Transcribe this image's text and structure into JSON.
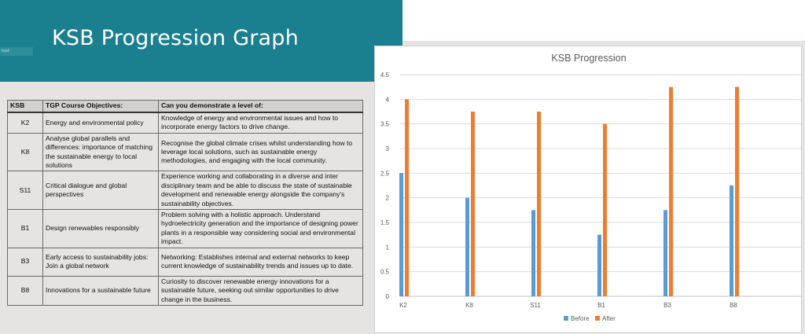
{
  "slide": {
    "title": "KSB Progression Graph",
    "tag": "text"
  },
  "table": {
    "headers": [
      "KSB",
      "TGP Course Objectives:",
      "Can you demonstrate a level of:"
    ],
    "rows": [
      {
        "code": "K2",
        "objective": "Energy and environmental policy",
        "demonstrate": "Knowledge of energy and environmental issues and how to incorporate energy factors to drive change."
      },
      {
        "code": "K8",
        "objective": "Analyse global parallels and differences: importance of matching the sustainable energy to local solutions",
        "demonstrate": "Recognise the global climate crises whilst understanding how to leverage local solutions, such as sustainable energy methodologies, and engaging with the local community."
      },
      {
        "code": "S11",
        "objective": "Critical dialogue and global perspectives",
        "demonstrate": "Experience working and collaborating in a diverse and inter disciplinary team and be able to discuss the state of sustainable development and renewable energy alongside the company's sustainability objectives."
      },
      {
        "code": "B1",
        "objective": "Design renewables responsibly",
        "demonstrate": "Problem solving with a holistic approach. Understand hydroelectricity generation and the importance of designing power plants in a responsible way considering social and environmental impact."
      },
      {
        "code": "B3",
        "objective": "Early access to sustainability jobs: Join a global network",
        "demonstrate": "Networking: Establishes internal and external networks to keep current knowledge of sustainability trends and issues up to date."
      },
      {
        "code": "B8",
        "objective": "Innovations for a sustainable future",
        "demonstrate": "Curiosity to discover renewable energy innovations for a sustainable future, seeking out similar opportunities to drive change in the business."
      }
    ]
  },
  "chart_data": {
    "type": "bar",
    "title": "KSB Progression",
    "categories": [
      "K2",
      "K8",
      "S11",
      "B1",
      "B3",
      "B8"
    ],
    "series": [
      {
        "name": "Before",
        "values": [
          2.5,
          2.0,
          1.75,
          1.25,
          1.75,
          2.25
        ],
        "color": "#5b9bd5"
      },
      {
        "name": "After",
        "values": [
          4.0,
          3.75,
          3.75,
          3.5,
          4.25,
          4.25
        ],
        "color": "#ed7d31"
      }
    ],
    "ylim": [
      0,
      4.5
    ],
    "yticks": [
      "0",
      "0.5",
      "1",
      "1.5",
      "2",
      "2.5",
      "3",
      "3.5",
      "4",
      "4.5"
    ],
    "grid": true,
    "legend_position": "bottom"
  }
}
